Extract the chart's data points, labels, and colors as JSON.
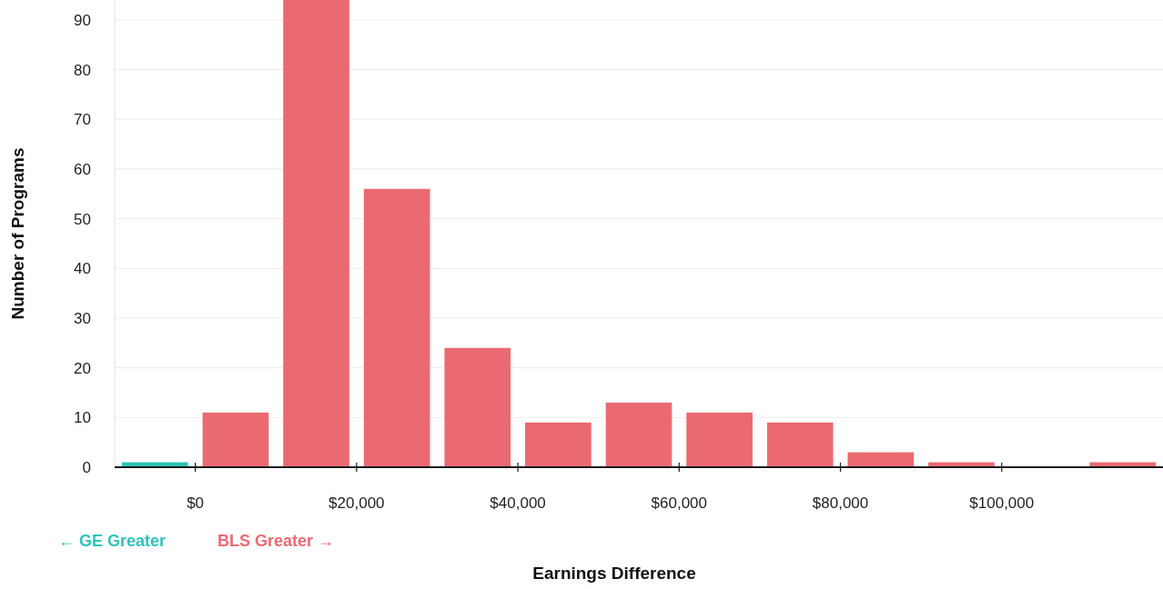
{
  "chart_data": {
    "type": "histogram",
    "xlabel": "Earnings Difference",
    "ylabel": "Number of Programs",
    "bins": [
      -10000,
      0,
      10000,
      20000,
      30000,
      40000,
      50000,
      60000,
      70000,
      80000,
      90000,
      100000,
      110000,
      120000
    ],
    "values": [
      1,
      11,
      94,
      56,
      24,
      9,
      13,
      11,
      9,
      3,
      1,
      0,
      1
    ],
    "colors": [
      "#2ec4b6",
      "#eb6a72",
      "#eb6a72",
      "#eb6a72",
      "#eb6a72",
      "#eb6a72",
      "#eb6a72",
      "#eb6a72",
      "#eb6a72",
      "#eb6a72",
      "#eb6a72",
      "#eb6a72",
      "#eb6a72"
    ],
    "xlim": [
      -10000,
      120000
    ],
    "xticks": [
      {
        "value": 0,
        "label": "$0"
      },
      {
        "value": 20000,
        "label": "$20,000"
      },
      {
        "value": 40000,
        "label": "$40,000"
      },
      {
        "value": 60000,
        "label": "$60,000"
      },
      {
        "value": 80000,
        "label": "$80,000"
      },
      {
        "value": 100000,
        "label": "$100,000"
      }
    ],
    "ylim": [
      0,
      94
    ],
    "yticks": [
      0,
      10,
      20,
      30,
      40,
      50,
      60,
      70,
      80,
      90
    ],
    "grid": "y",
    "annotations": [
      "← GE Greater",
      "BLS Greater →"
    ]
  }
}
